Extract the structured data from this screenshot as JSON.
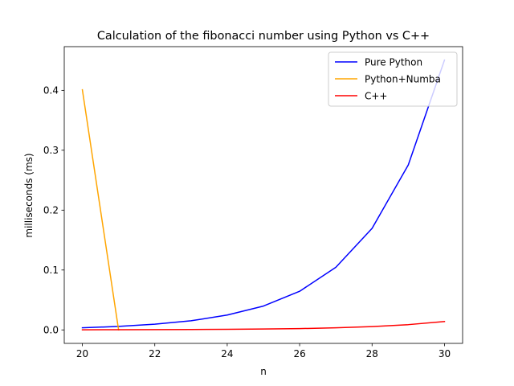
{
  "chart_data": {
    "type": "line",
    "title": "Calculation of the fibonacci number using Python vs C++",
    "xlabel": "n",
    "ylabel": "milliseconds (ms)",
    "xlim": [
      19.5,
      30.5
    ],
    "ylim": [
      -0.0225,
      0.473
    ],
    "x_ticks": [
      20,
      22,
      24,
      26,
      28,
      30
    ],
    "y_ticks": [
      0.0,
      0.1,
      0.2,
      0.3,
      0.4
    ],
    "x_tick_labels": [
      "20",
      "22",
      "24",
      "26",
      "28",
      "30"
    ],
    "y_tick_labels": [
      "0.0",
      "0.1",
      "0.2",
      "0.3",
      "0.4"
    ],
    "grid": false,
    "legend_position": "top-right",
    "x": [
      20,
      21,
      22,
      23,
      24,
      25,
      26,
      27,
      28,
      29,
      30
    ],
    "series": [
      {
        "name": "Pure Python",
        "color": "#0000ff",
        "values": [
          0.0035,
          0.0058,
          0.0095,
          0.0152,
          0.0248,
          0.0398,
          0.0645,
          0.1045,
          0.1695,
          0.2755,
          0.4505
        ]
      },
      {
        "name": "Python+Numba",
        "color": "#ffa500",
        "values": [
          0.401,
          0.0002,
          null,
          null,
          null,
          null,
          null,
          null,
          null,
          null,
          null
        ]
      },
      {
        "name": "C++",
        "color": "#ff0000",
        "values": [
          0.0002,
          0.0003,
          0.0005,
          0.0007,
          0.001,
          0.0015,
          0.0022,
          0.0035,
          0.0055,
          0.0088,
          0.014
        ]
      }
    ]
  }
}
